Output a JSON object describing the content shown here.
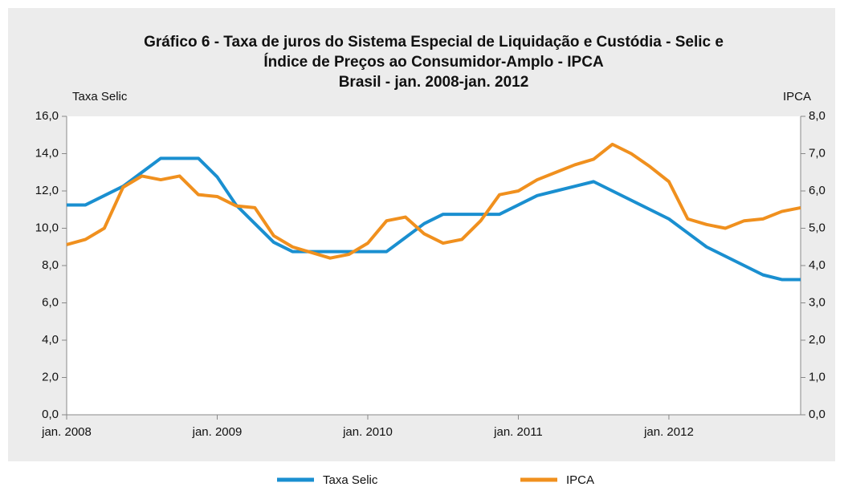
{
  "chart_data": {
    "type": "line",
    "title": [
      "Gráfico 6 - Taxa de juros do Sistema Especial de Liquidação e Custódia - Selic e",
      "Índice de Preços ao Consumidor-Amplo - IPCA",
      "Brasil - jan. 2008-jan. 2012"
    ],
    "y_label": "Taxa Selic",
    "y2_label": "IPCA",
    "categories": [
      "jan. 2008",
      null,
      null,
      null,
      null,
      null,
      null,
      null,
      "jan. 2009",
      null,
      null,
      null,
      null,
      null,
      null,
      null,
      "jan. 2010",
      null,
      null,
      null,
      null,
      null,
      null,
      null,
      "jan. 2011",
      null,
      null,
      null,
      null,
      null,
      null,
      null,
      "jan. 2012",
      null,
      null,
      null,
      null,
      null,
      null,
      null
    ],
    "series": [
      {
        "name": "Taxa Selic",
        "color": "#1a8fd0",
        "values": [
          11.25,
          11.25,
          11.75,
          12.25,
          13.0,
          13.75,
          13.75,
          13.75,
          12.75,
          11.25,
          10.25,
          9.25,
          8.75,
          8.75,
          8.75,
          8.75,
          8.75,
          8.75,
          9.5,
          10.25,
          10.75,
          10.75,
          10.75,
          10.75,
          11.25,
          11.75,
          12.0,
          12.25,
          12.5,
          12.0,
          11.5,
          11.0,
          10.5,
          9.75,
          9.0,
          8.5,
          8.0,
          7.5,
          7.25,
          7.25
        ]
      },
      {
        "name": "IPCA",
        "color": "#f0901e",
        "axis": "y2",
        "values": [
          4.56,
          4.7,
          5.0,
          6.1,
          6.4,
          6.3,
          6.4,
          5.9,
          5.85,
          5.6,
          5.55,
          4.8,
          4.5,
          4.35,
          4.2,
          4.3,
          4.6,
          5.2,
          5.3,
          4.85,
          4.6,
          4.7,
          5.2,
          5.9,
          6.0,
          6.3,
          6.5,
          6.7,
          6.85,
          7.25,
          7.0,
          6.65,
          6.25,
          5.25,
          5.1,
          5.0,
          5.2,
          5.25,
          5.45,
          5.55
        ]
      }
    ],
    "ylim": [
      0,
      16
    ],
    "yticks": [
      {
        "value": 0,
        "label": "0,0"
      },
      {
        "value": 2,
        "label": "2,0"
      },
      {
        "value": 4,
        "label": "4,0"
      },
      {
        "value": 6,
        "label": "6,0"
      },
      {
        "value": 8,
        "label": "8,0"
      },
      {
        "value": 10,
        "label": "10,0"
      },
      {
        "value": 12,
        "label": "12,0"
      },
      {
        "value": 14,
        "label": "14,0"
      },
      {
        "value": 16,
        "label": "16,0"
      }
    ],
    "y2lim": [
      0,
      8
    ],
    "y2ticks": [
      {
        "value": 0,
        "label": "0,0"
      },
      {
        "value": 1,
        "label": "1,0"
      },
      {
        "value": 2,
        "label": "2,0"
      },
      {
        "value": 3,
        "label": "3,0"
      },
      {
        "value": 4,
        "label": "4,0"
      },
      {
        "value": 5,
        "label": "5,0"
      },
      {
        "value": 6,
        "label": "6,0"
      },
      {
        "value": 7,
        "label": "7,0"
      },
      {
        "value": 8,
        "label": "8,0"
      }
    ],
    "legend": "bottom"
  }
}
